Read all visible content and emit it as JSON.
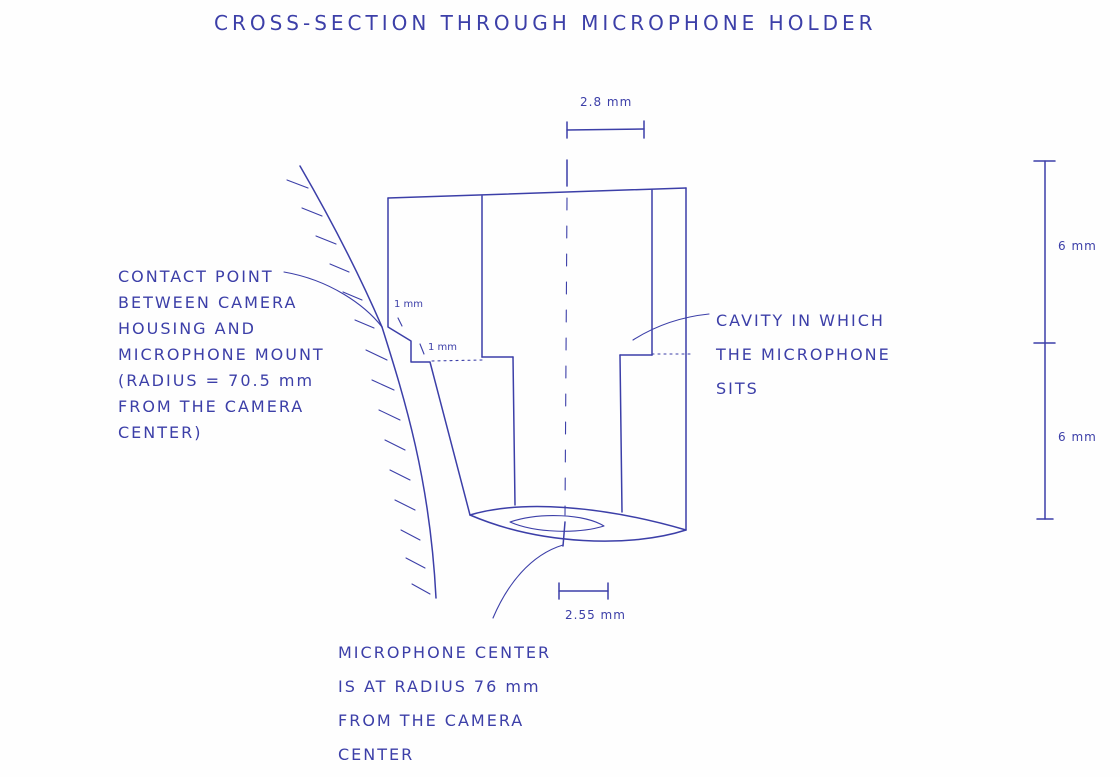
{
  "title": "CROSS-SECTION THROUGH MICROPHONE HOLDER",
  "ink_color": "#3c3fa8",
  "notes": {
    "contact_point": [
      "CONTACT POINT",
      "BETWEEN CAMERA",
      "HOUSING AND",
      "MICROPHONE MOUNT",
      "(RADIUS = 70.5 mm",
      "FROM THE CAMERA",
      "CENTER)"
    ],
    "cavity": [
      "CAVITY IN WHICH",
      "THE MICROPHONE",
      "SITS"
    ],
    "mic_center": [
      "MICROPHONE CENTER",
      "IS AT RADIUS 76 mm",
      "FROM THE CAMERA",
      "CENTER"
    ]
  },
  "dimensions": {
    "top_width": "2.8 mm",
    "bottom_width": "2.55 mm",
    "step_upper": "1 mm",
    "step_lower": "1 mm",
    "height_upper": "6 mm",
    "height_lower": "6 mm"
  }
}
